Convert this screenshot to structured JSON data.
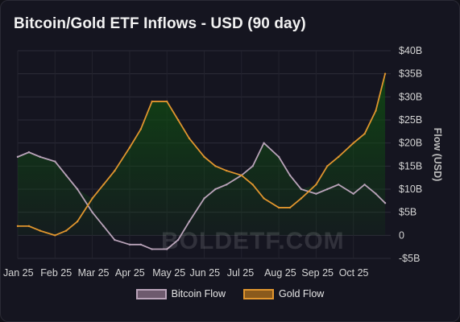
{
  "chart_data": {
    "type": "area",
    "title": "Bitcoin/Gold ETF Inflows - USD (90 day)",
    "xlabel": "",
    "ylabel": "Flow (USD)",
    "ylim": [
      -5,
      40
    ],
    "y_ticks": [
      -5,
      0,
      5,
      10,
      15,
      20,
      25,
      30,
      35,
      40
    ],
    "y_tick_labels": [
      "-$5B",
      "0",
      "$5B",
      "$10B",
      "$15B",
      "$20B",
      "$25B",
      "$30B",
      "$35B",
      "$40B"
    ],
    "x_months": [
      "Jan 25",
      "Feb 25",
      "Mar 25",
      "Apr 25",
      "May 25",
      "Jun 25",
      "Jul 25",
      "Aug 25",
      "Sep 25",
      "Oct 25"
    ],
    "x": [
      0,
      0.3,
      0.6,
      1.0,
      1.3,
      1.6,
      2.0,
      2.3,
      2.6,
      3.0,
      3.3,
      3.6,
      4.0,
      4.3,
      4.6,
      5.0,
      5.3,
      5.6,
      6.0,
      6.3,
      6.6,
      7.0,
      7.3,
      7.6,
      8.0,
      8.3,
      8.6,
      9.0,
      9.3,
      9.6,
      9.85
    ],
    "series": [
      {
        "name": "Bitcoin Flow",
        "color": "#b9a3b9",
        "values": [
          17,
          18,
          17,
          16,
          13,
          10,
          5,
          2,
          -1,
          -2,
          -2,
          -3,
          -3,
          -1,
          3,
          8,
          10,
          11,
          13,
          15,
          20,
          17,
          13,
          10,
          9,
          10,
          11,
          9,
          11,
          9,
          7
        ]
      },
      {
        "name": "Gold Flow",
        "color": "#e0952e",
        "values": [
          2,
          2,
          1,
          0,
          1,
          3,
          8,
          11,
          14,
          19,
          23,
          29,
          29,
          25,
          21,
          17,
          15,
          14,
          13,
          11,
          8,
          6,
          6,
          8,
          11,
          15,
          17,
          20,
          22,
          27,
          35
        ]
      }
    ],
    "fill_color": "#0f4a12",
    "grid": true,
    "legend_position": "bottom-center"
  },
  "watermark": "BOLDETF.COM"
}
